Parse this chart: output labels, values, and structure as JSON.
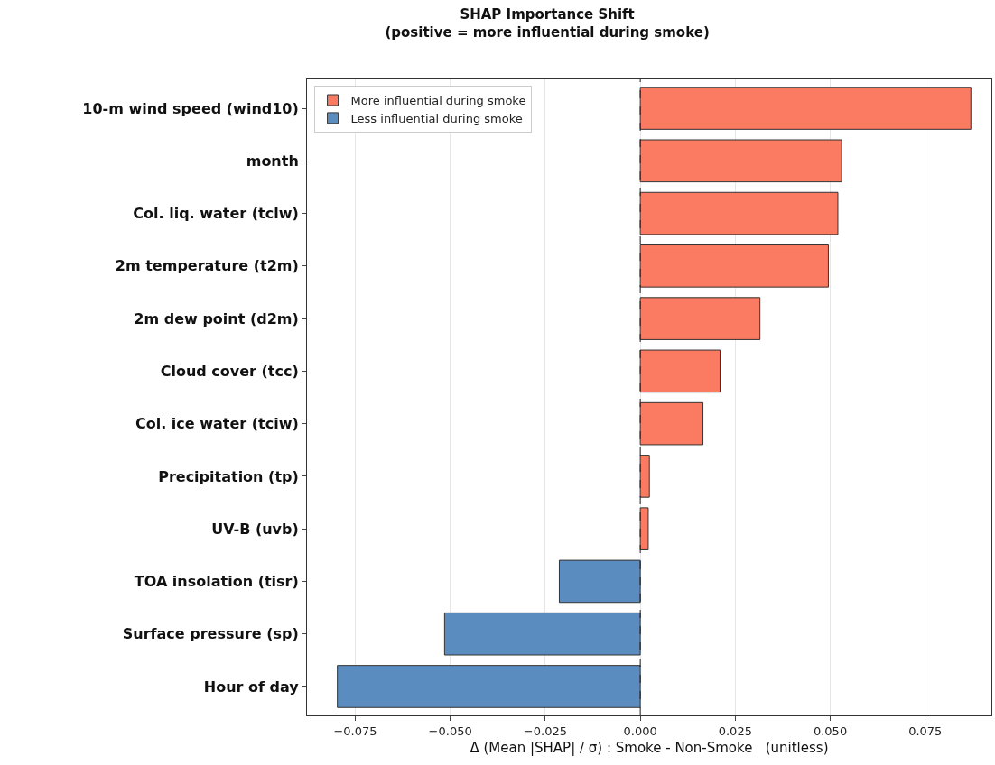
{
  "chart_data": {
    "type": "bar",
    "orientation": "horizontal",
    "title": "SHAP Importance Shift",
    "subtitle": "(positive = more influential during smoke)",
    "xlabel": "Δ (Mean |SHAP| / σ) : Smoke - Non-Smoke   (unitless)",
    "categories": [
      "10-m wind speed (wind10)",
      "month",
      "Col. liq. water (tclw)",
      "2m temperature (t2m)",
      "2m dew point (d2m)",
      "Cloud cover (tcc)",
      "Col. ice water (tciw)",
      "Precipitation (tp)",
      "UV-B (uvb)",
      "TOA insolation (tisr)",
      "Surface pressure (sp)",
      "Hour of day"
    ],
    "series": [
      {
        "name": "More influential during smoke",
        "color": "#fa7a62",
        "values": [
          0.087,
          0.053,
          0.052,
          0.0495,
          0.0315,
          0.021,
          0.0165,
          0.0024,
          0.0021,
          null,
          null,
          null
        ]
      },
      {
        "name": "Less influential during smoke",
        "color": "#5b8cc0",
        "values": [
          null,
          null,
          null,
          null,
          null,
          null,
          null,
          null,
          null,
          -0.0213,
          -0.0515,
          -0.0797
        ]
      }
    ],
    "xlim": [
      -0.0877,
      0.0924
    ],
    "xticks": [
      {
        "value": -0.075,
        "label": "−0.075"
      },
      {
        "value": -0.05,
        "label": "−0.050"
      },
      {
        "value": -0.025,
        "label": "−0.025"
      },
      {
        "value": 0,
        "label": "0.000"
      },
      {
        "value": 0.025,
        "label": "0.025"
      },
      {
        "value": 0.05,
        "label": "0.050"
      },
      {
        "value": 0.075,
        "label": "0.075"
      }
    ],
    "grid": "x",
    "legend": "top left",
    "ref_lines": [
      {
        "axis": "x",
        "value": 0,
        "color": "#222222",
        "line_style": "dashed"
      }
    ]
  }
}
